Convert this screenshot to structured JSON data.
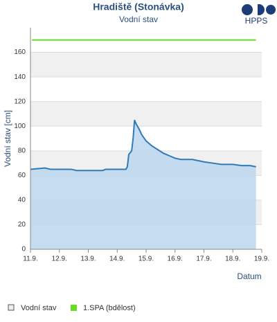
{
  "chart_data": {
    "type": "line",
    "title": "Hradiště (Stonávka)",
    "subtitle": "Vodní stav",
    "logo": "HPPS",
    "y_label": "Vodní stav [cm]",
    "x_label": "Datum",
    "xlim": [
      11,
      19
    ],
    "ylim": [
      0,
      180
    ],
    "xticks": [
      {
        "value": 11,
        "label": "11.9."
      },
      {
        "value": 12,
        "label": "12.9."
      },
      {
        "value": 13,
        "label": "13.9."
      },
      {
        "value": 14,
        "label": "14.9."
      },
      {
        "value": 15,
        "label": "15.9."
      },
      {
        "value": 16,
        "label": "16.9."
      },
      {
        "value": 17,
        "label": "17.9."
      },
      {
        "value": 18,
        "label": "18.9."
      },
      {
        "value": 19,
        "label": "19.9."
      }
    ],
    "yticks": [
      0,
      20,
      40,
      60,
      80,
      100,
      120,
      140,
      160
    ],
    "grid": true,
    "series": [
      {
        "name": "Vodní stav",
        "color": "#2f7ab8",
        "fill": "#bcd6ee",
        "x": [
          11.0,
          11.5,
          11.7,
          12.4,
          12.6,
          13.5,
          13.6,
          14.3,
          14.35,
          14.4,
          14.5,
          14.55,
          14.6,
          14.65,
          14.75,
          14.85,
          15.0,
          15.2,
          15.4,
          15.6,
          15.8,
          16.0,
          16.2,
          16.4,
          16.6,
          16.8,
          17.0,
          17.3,
          17.6,
          18.0,
          18.3,
          18.6,
          18.8
        ],
        "values": [
          65,
          66,
          65,
          65,
          64,
          64,
          65,
          65,
          67,
          77,
          80,
          90,
          105,
          102,
          98,
          93,
          88,
          84,
          81,
          78,
          76,
          74,
          73,
          73,
          73,
          72,
          71,
          70,
          69,
          69,
          68,
          68,
          67
        ]
      },
      {
        "name": "1.SPA (bdělost)",
        "color": "#66dd22",
        "x": [
          11.05,
          18.8
        ],
        "values": [
          170,
          170
        ]
      }
    ]
  }
}
